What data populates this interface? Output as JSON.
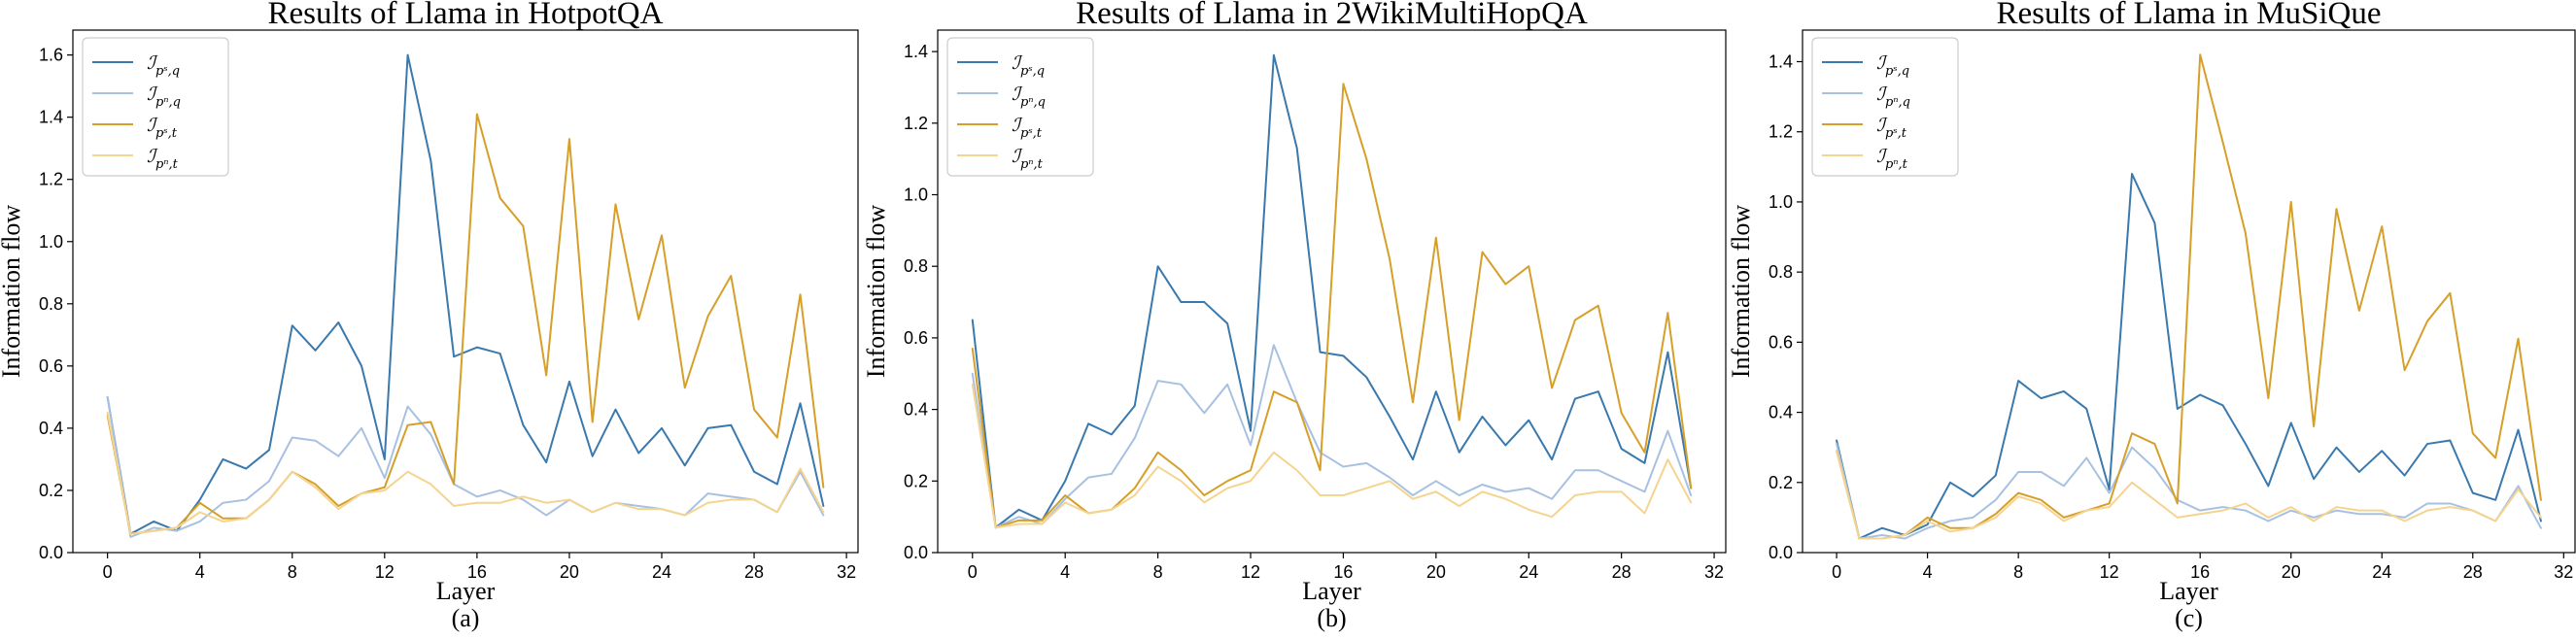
{
  "colors": {
    "ps_q": "#3a79ad",
    "pn_q": "#a8c1e1",
    "ps_t": "#d69f2a",
    "pn_t": "#f4d48f"
  },
  "chart_data": [
    {
      "type": "line",
      "title": "Results of Llama in HotpotQA",
      "xlabel": "Layer",
      "ylabel": "Information flow",
      "caption": "(a)",
      "xlim": [
        -1.5,
        32.5
      ],
      "ylim": [
        0,
        1.68
      ],
      "xticks": [
        0,
        4,
        8,
        12,
        16,
        20,
        24,
        28,
        32
      ],
      "yticks": [
        0.0,
        0.2,
        0.4,
        0.6,
        0.8,
        1.0,
        1.2,
        1.4,
        1.6
      ],
      "ytick_labels": [
        "0.0",
        "0.2",
        "0.4",
        "0.6",
        "0.8",
        "1.0",
        "1.2",
        "1.4",
        "1.6"
      ],
      "legend_position": "top-left",
      "x": [
        0,
        1,
        2,
        3,
        4,
        5,
        6,
        7,
        8,
        9,
        10,
        11,
        12,
        13,
        14,
        15,
        16,
        17,
        18,
        19,
        20,
        21,
        22,
        23,
        24,
        25,
        26,
        27,
        28,
        29,
        30,
        31
      ],
      "series": [
        {
          "key": "ps_q",
          "sub": "pˢ,q",
          "values": [
            0.5,
            0.06,
            0.1,
            0.07,
            0.17,
            0.3,
            0.27,
            0.33,
            0.73,
            0.65,
            0.74,
            0.6,
            0.3,
            1.6,
            1.26,
            0.63,
            0.66,
            0.64,
            0.41,
            0.29,
            0.55,
            0.31,
            0.46,
            0.32,
            0.4,
            0.28,
            0.4,
            0.41,
            0.26,
            0.22,
            0.48,
            0.15
          ]
        },
        {
          "key": "pn_q",
          "sub": "pⁿ,q",
          "values": [
            0.5,
            0.05,
            0.08,
            0.07,
            0.1,
            0.16,
            0.17,
            0.23,
            0.37,
            0.36,
            0.31,
            0.4,
            0.24,
            0.47,
            0.38,
            0.22,
            0.18,
            0.2,
            0.17,
            0.12,
            0.17,
            0.13,
            0.16,
            0.15,
            0.14,
            0.12,
            0.19,
            0.18,
            0.17,
            0.13,
            0.26,
            0.12
          ]
        },
        {
          "key": "ps_t",
          "sub": "pˢ,t",
          "values": [
            0.44,
            0.06,
            0.07,
            0.08,
            0.16,
            0.11,
            0.11,
            0.17,
            0.26,
            0.22,
            0.15,
            0.19,
            0.21,
            0.41,
            0.42,
            0.22,
            1.41,
            1.14,
            1.05,
            0.57,
            1.33,
            0.42,
            1.12,
            0.75,
            1.02,
            0.53,
            0.76,
            0.89,
            0.46,
            0.37,
            0.83,
            0.21
          ]
        },
        {
          "key": "pn_t",
          "sub": "pⁿ,t",
          "values": [
            0.45,
            0.06,
            0.07,
            0.08,
            0.13,
            0.1,
            0.11,
            0.17,
            0.26,
            0.21,
            0.14,
            0.19,
            0.2,
            0.26,
            0.22,
            0.15,
            0.16,
            0.16,
            0.18,
            0.16,
            0.17,
            0.13,
            0.16,
            0.14,
            0.14,
            0.12,
            0.16,
            0.17,
            0.17,
            0.13,
            0.27,
            0.13
          ]
        }
      ]
    },
    {
      "type": "line",
      "title": "Results of Llama in 2WikiMultiHopQA",
      "xlabel": "Layer",
      "ylabel": "Information flow",
      "caption": "(b)",
      "xlim": [
        -1.5,
        32.5
      ],
      "ylim": [
        0,
        1.46
      ],
      "xticks": [
        0,
        4,
        8,
        12,
        16,
        20,
        24,
        28,
        32
      ],
      "yticks": [
        0.0,
        0.2,
        0.4,
        0.6,
        0.8,
        1.0,
        1.2,
        1.4
      ],
      "ytick_labels": [
        "0.0",
        "0.2",
        "0.4",
        "0.6",
        "0.8",
        "1.0",
        "1.2",
        "1.4"
      ],
      "legend_position": "top-left",
      "x": [
        0,
        1,
        2,
        3,
        4,
        5,
        6,
        7,
        8,
        9,
        10,
        11,
        12,
        13,
        14,
        15,
        16,
        17,
        18,
        19,
        20,
        21,
        22,
        23,
        24,
        25,
        26,
        27,
        28,
        29,
        30,
        31
      ],
      "series": [
        {
          "key": "ps_q",
          "sub": "pˢ,q",
          "values": [
            0.65,
            0.07,
            0.12,
            0.09,
            0.2,
            0.36,
            0.33,
            0.41,
            0.8,
            0.7,
            0.7,
            0.64,
            0.34,
            1.39,
            1.13,
            0.56,
            0.55,
            0.49,
            0.38,
            0.26,
            0.45,
            0.28,
            0.38,
            0.3,
            0.37,
            0.26,
            0.43,
            0.45,
            0.29,
            0.25,
            0.56,
            0.18
          ]
        },
        {
          "key": "pn_q",
          "sub": "pⁿ,q",
          "values": [
            0.5,
            0.07,
            0.1,
            0.08,
            0.15,
            0.21,
            0.22,
            0.32,
            0.48,
            0.47,
            0.39,
            0.47,
            0.3,
            0.58,
            0.42,
            0.28,
            0.24,
            0.25,
            0.21,
            0.16,
            0.2,
            0.16,
            0.19,
            0.17,
            0.18,
            0.15,
            0.23,
            0.23,
            0.2,
            0.17,
            0.34,
            0.16
          ]
        },
        {
          "key": "ps_t",
          "sub": "pˢ,t",
          "values": [
            0.57,
            0.07,
            0.09,
            0.09,
            0.16,
            0.11,
            0.12,
            0.18,
            0.28,
            0.23,
            0.16,
            0.2,
            0.23,
            0.45,
            0.42,
            0.23,
            1.31,
            1.1,
            0.82,
            0.42,
            0.88,
            0.37,
            0.84,
            0.75,
            0.8,
            0.46,
            0.65,
            0.69,
            0.39,
            0.28,
            0.67,
            0.18
          ]
        },
        {
          "key": "pn_t",
          "sub": "pⁿ,t",
          "values": [
            0.47,
            0.07,
            0.08,
            0.08,
            0.14,
            0.11,
            0.12,
            0.16,
            0.24,
            0.2,
            0.14,
            0.18,
            0.2,
            0.28,
            0.23,
            0.16,
            0.16,
            0.18,
            0.2,
            0.15,
            0.17,
            0.13,
            0.17,
            0.15,
            0.12,
            0.1,
            0.16,
            0.17,
            0.17,
            0.11,
            0.26,
            0.14
          ]
        }
      ]
    },
    {
      "type": "line",
      "title": "Results of Llama in MuSiQue",
      "xlabel": "Layer",
      "ylabel": "Information flow",
      "caption": "(c)",
      "xlim": [
        -1.5,
        32.5
      ],
      "ylim": [
        0,
        1.49
      ],
      "xticks": [
        0,
        4,
        8,
        12,
        16,
        20,
        24,
        28,
        32
      ],
      "yticks": [
        0.0,
        0.2,
        0.4,
        0.6,
        0.8,
        1.0,
        1.2,
        1.4
      ],
      "ytick_labels": [
        "0.0",
        "0.2",
        "0.4",
        "0.6",
        "0.8",
        "1.0",
        "1.2",
        "1.4"
      ],
      "legend_position": "top-left",
      "x": [
        0,
        1,
        2,
        3,
        4,
        5,
        6,
        7,
        8,
        9,
        10,
        11,
        12,
        13,
        14,
        15,
        16,
        17,
        18,
        19,
        20,
        21,
        22,
        23,
        24,
        25,
        26,
        27,
        28,
        29,
        30,
        31
      ],
      "series": [
        {
          "key": "ps_q",
          "sub": "pˢ,q",
          "values": [
            0.32,
            0.04,
            0.07,
            0.05,
            0.08,
            0.2,
            0.16,
            0.22,
            0.49,
            0.44,
            0.46,
            0.41,
            0.18,
            1.08,
            0.94,
            0.41,
            0.45,
            0.42,
            0.31,
            0.19,
            0.37,
            0.21,
            0.3,
            0.23,
            0.29,
            0.22,
            0.31,
            0.32,
            0.17,
            0.15,
            0.35,
            0.09
          ]
        },
        {
          "key": "pn_q",
          "sub": "pⁿ,q",
          "values": [
            0.31,
            0.04,
            0.05,
            0.04,
            0.07,
            0.09,
            0.1,
            0.15,
            0.23,
            0.23,
            0.19,
            0.27,
            0.17,
            0.3,
            0.24,
            0.15,
            0.12,
            0.13,
            0.12,
            0.09,
            0.12,
            0.1,
            0.12,
            0.11,
            0.11,
            0.1,
            0.14,
            0.14,
            0.12,
            0.09,
            0.19,
            0.07
          ]
        },
        {
          "key": "ps_t",
          "sub": "pˢ,t",
          "values": [
            0.29,
            0.04,
            0.04,
            0.05,
            0.1,
            0.07,
            0.07,
            0.11,
            0.17,
            0.15,
            0.1,
            0.12,
            0.14,
            0.34,
            0.31,
            0.14,
            1.42,
            1.17,
            0.91,
            0.44,
            1.0,
            0.36,
            0.98,
            0.69,
            0.93,
            0.52,
            0.66,
            0.74,
            0.34,
            0.27,
            0.61,
            0.15
          ]
        },
        {
          "key": "pn_t",
          "sub": "pⁿ,t",
          "values": [
            0.29,
            0.04,
            0.04,
            0.05,
            0.09,
            0.06,
            0.07,
            0.1,
            0.16,
            0.14,
            0.09,
            0.12,
            0.13,
            0.2,
            0.15,
            0.1,
            0.11,
            0.12,
            0.14,
            0.1,
            0.13,
            0.09,
            0.13,
            0.12,
            0.12,
            0.09,
            0.12,
            0.13,
            0.12,
            0.09,
            0.18,
            0.1
          ]
        }
      ]
    }
  ]
}
